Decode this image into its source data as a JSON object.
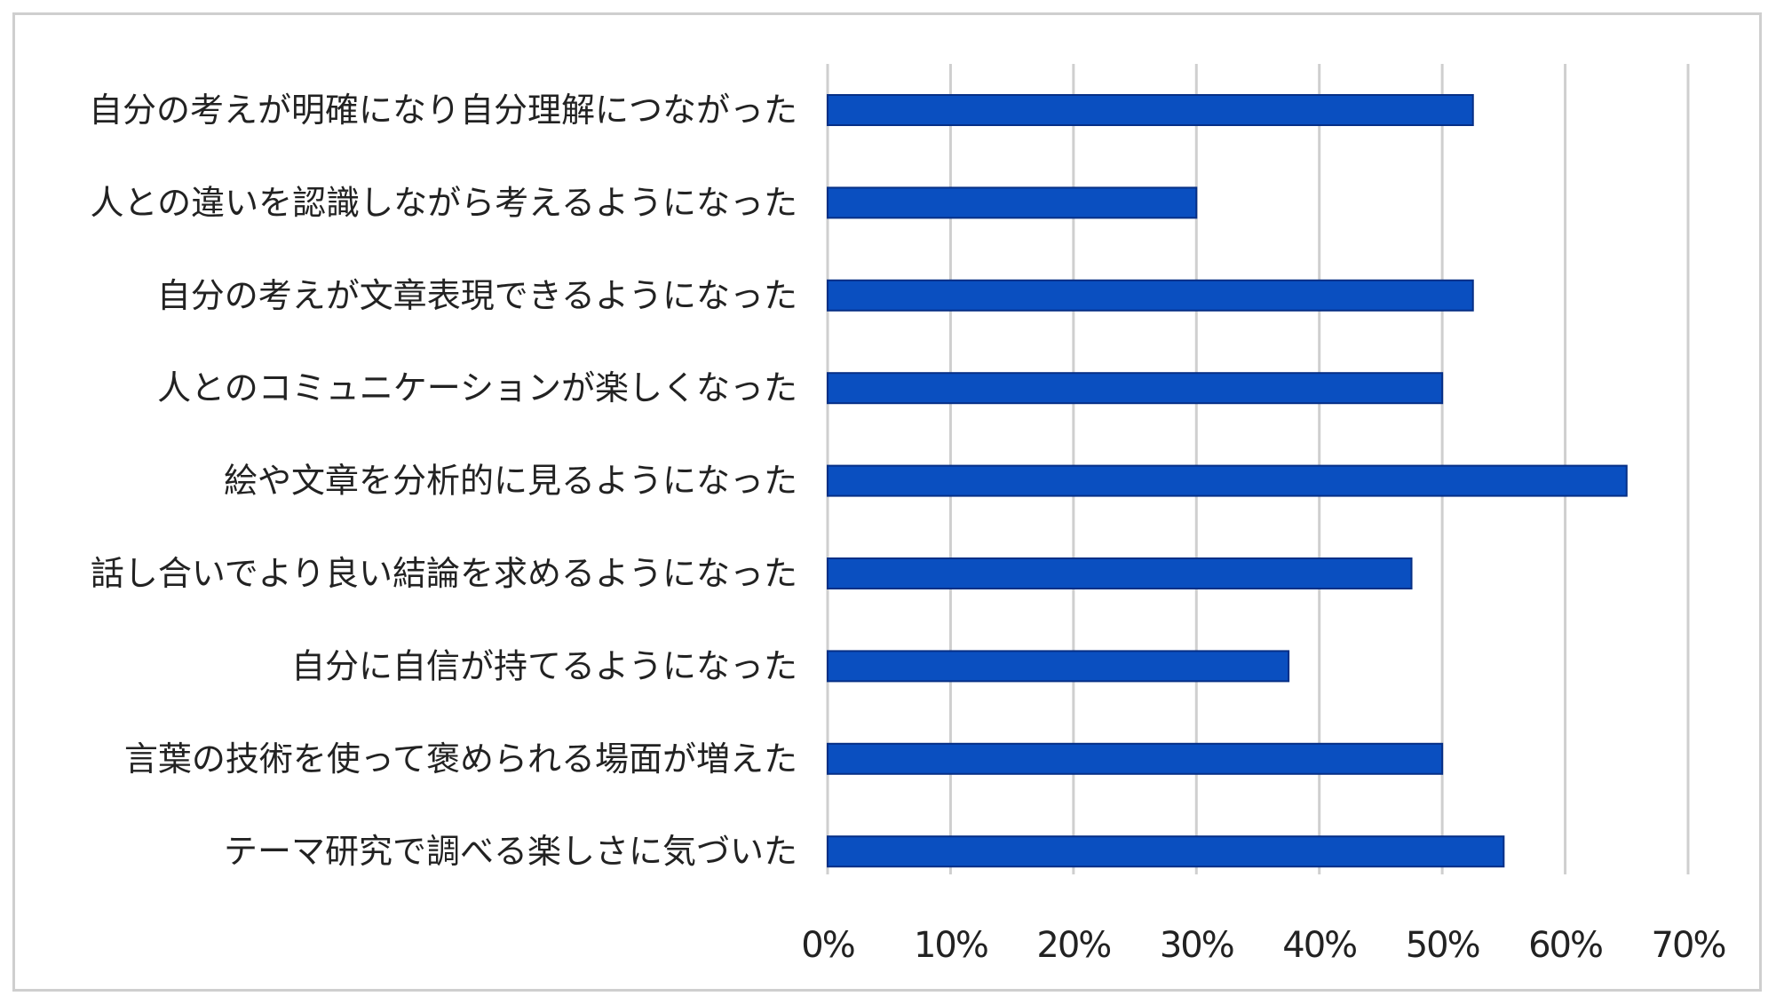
{
  "chart_data": {
    "type": "bar",
    "orientation": "horizontal",
    "title": "",
    "xlabel": "",
    "ylabel": "",
    "categories": [
      "自分の考えが明確になり自分理解につながった",
      "人との違いを認識しながら考えるようになった",
      "自分の考えが文章表現できるようになった",
      "人とのコミュニケーションが楽しくなった",
      "絵や文章を分析的に見るようになった",
      "話し合いでより良い結論を求めるようになった",
      "自分に自信が持てるようになった",
      "言葉の技術を使って褒められる場面が増えた",
      "テーマ研究で調べる楽しさに気づいた"
    ],
    "values": [
      52.5,
      30.0,
      52.5,
      50.0,
      65.0,
      47.5,
      37.5,
      50.0,
      55.0
    ],
    "xlim": [
      0,
      70
    ],
    "x_ticks": [
      0,
      10,
      20,
      30,
      40,
      50,
      60,
      70
    ],
    "x_tick_labels": [
      "0%",
      "10%",
      "20%",
      "30%",
      "40%",
      "50%",
      "60%",
      "70%"
    ],
    "grid": true,
    "legend": "none",
    "colors": {
      "bar_fill": "#0a4fc0",
      "bar_stroke": "#062f86",
      "grid": "#cfcfcf",
      "frame": "#cfcfcf",
      "text": "#222222"
    }
  }
}
